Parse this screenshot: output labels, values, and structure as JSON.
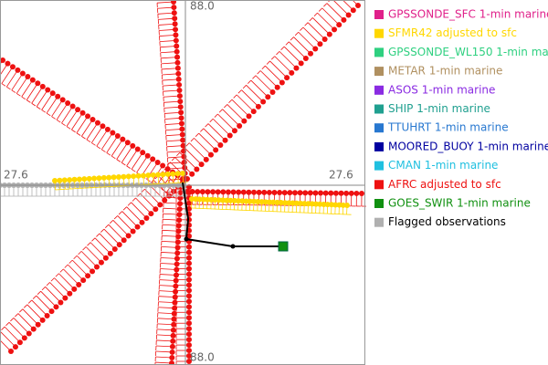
{
  "map": {
    "axis_labels": {
      "top": "88.0",
      "bottom": "88.0",
      "left": "27.6",
      "right": "27.6"
    },
    "legend": [
      {
        "label": "GPSSONDE_SFC 1-min marine",
        "color": "#e0208a"
      },
      {
        "label": "SFMR42 adjusted to sfc",
        "color": "#ffd700"
      },
      {
        "label": "GPSSONDE_WL150 1-min marine",
        "color": "#2fd080"
      },
      {
        "label": "METAR 1-min marine",
        "color": "#b09060"
      },
      {
        "label": "ASOS 1-min marine",
        "color": "#8a2be2"
      },
      {
        "label": "SHIP 1-min marine",
        "color": "#20a090"
      },
      {
        "label": "TTUHRT 1-min marine",
        "color": "#2878d0"
      },
      {
        "label": "MOORED_BUOY 1-min marine",
        "color": "#0000a0"
      },
      {
        "label": "CMAN 1-min marine",
        "color": "#20c0e0"
      },
      {
        "label": "AFRC adjusted to sfc",
        "color": "#ee1111"
      },
      {
        "label": "GOES_SWIR 1-min marine",
        "color": "#109010"
      },
      {
        "label": "Flagged observations",
        "color": "#b0b0b0"
      }
    ]
  }
}
